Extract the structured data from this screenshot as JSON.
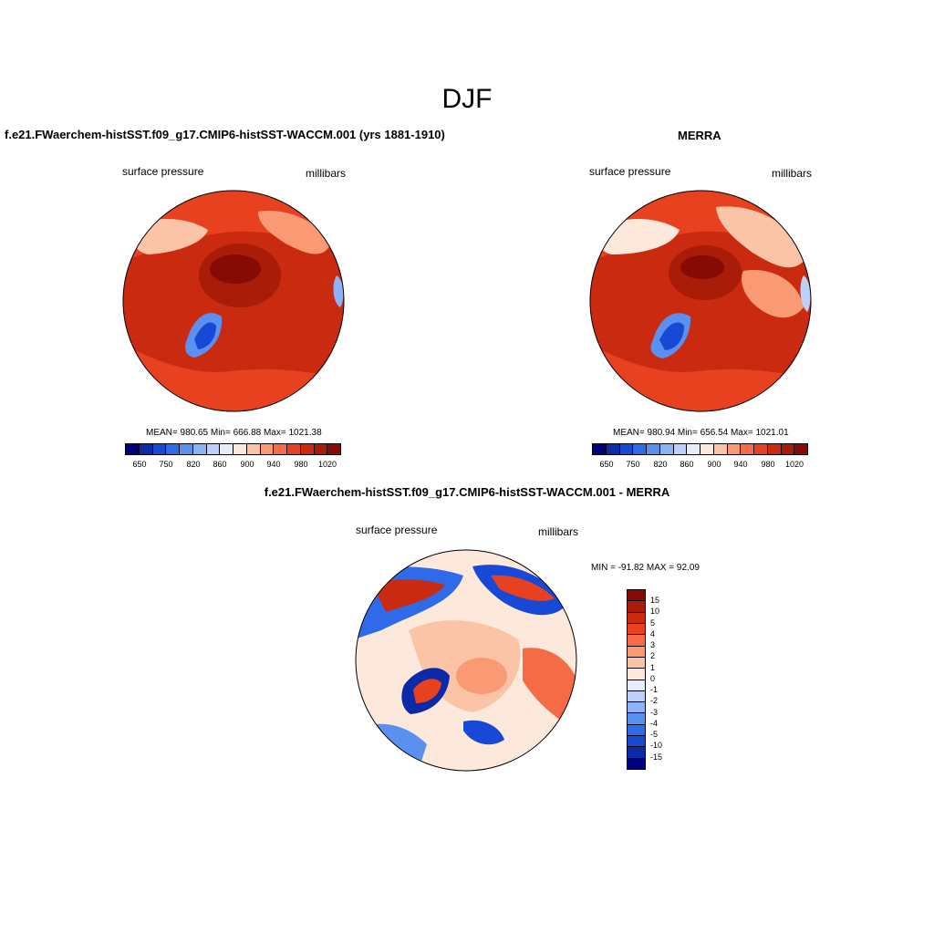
{
  "figure": {
    "season": "DJF"
  },
  "panels": {
    "model": {
      "title": "f.e21.FWaerchem-histSST.f09_g17.CMIP6-histSST-WACCM.001 (yrs 1881-1910)",
      "left_label": "surface pressure",
      "right_label": "millibars",
      "stats": "MEAN= 980.65  Min= 666.88  Max= 1021.38"
    },
    "obs": {
      "title": "MERRA",
      "left_label": "surface pressure",
      "right_label": "millibars",
      "stats": "MEAN= 980.94  Min= 656.54  Max= 1021.01"
    },
    "diff": {
      "title": "f.e21.FWaerchem-histSST.f09_g17.CMIP6-histSST-WACCM.001 - MERRA",
      "left_label": "surface pressure",
      "right_label": "millibars",
      "stats": "MIN = -91.82 MAX =  92.09"
    }
  },
  "colorbar_main": {
    "tick_labels": [
      "650",
      "750",
      "820",
      "860",
      "900",
      "940",
      "980",
      "1020"
    ],
    "colors": [
      "#00007a",
      "#0a2aa8",
      "#1849d6",
      "#2f6ae8",
      "#5b8ff0",
      "#8eb2f6",
      "#bcd0fa",
      "#e6eefc",
      "#fde9dc",
      "#fcc4a6",
      "#f99a74",
      "#f46b46",
      "#e8411f",
      "#c92a10",
      "#a81c08",
      "#860b04"
    ]
  },
  "colorbar_diff": {
    "tick_labels": [
      "15",
      "10",
      "5",
      "4",
      "3",
      "2",
      "1",
      "0",
      "-1",
      "-2",
      "-3",
      "-4",
      "-5",
      "-10",
      "-15"
    ],
    "colors": [
      "#860b04",
      "#a81c08",
      "#c92a10",
      "#e8411f",
      "#f46b46",
      "#f99a74",
      "#fcc4a6",
      "#fde9dc",
      "#e6eefc",
      "#bcd0fa",
      "#8eb2f6",
      "#5b8ff0",
      "#2f6ae8",
      "#1849d6",
      "#0a2aa8",
      "#00007a"
    ]
  }
}
